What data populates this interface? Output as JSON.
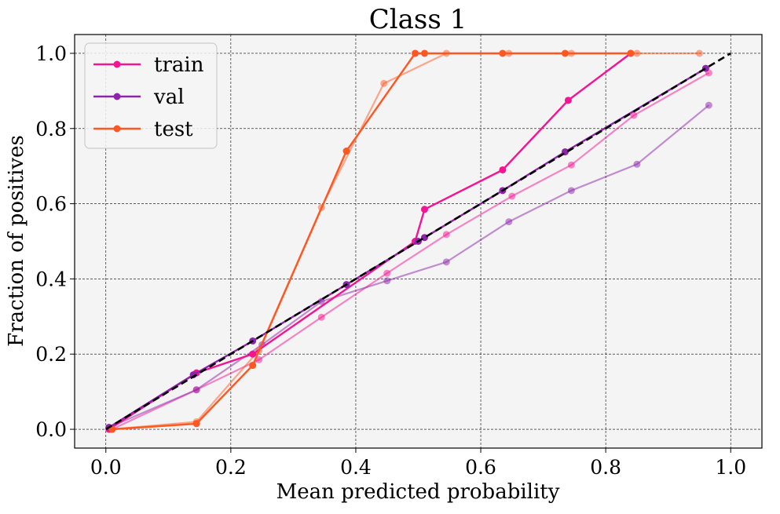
{
  "chart_data": {
    "type": "line",
    "title": "Class 1",
    "xlabel": "Mean predicted probability",
    "ylabel": "Fraction of positives",
    "xlim": [
      -0.05,
      1.05
    ],
    "ylim": [
      -0.05,
      1.05
    ],
    "xticks": [
      0.0,
      0.2,
      0.4,
      0.6,
      0.8,
      1.0
    ],
    "yticks": [
      0.0,
      0.2,
      0.4,
      0.6,
      0.8,
      1.0
    ],
    "xtick_labels": [
      "0.0",
      "0.2",
      "0.4",
      "0.6",
      "0.8",
      "1.0"
    ],
    "ytick_labels": [
      "0.0",
      "0.2",
      "0.4",
      "0.6",
      "0.8",
      "1.0"
    ],
    "grid": true,
    "background": "#f4f4f4",
    "legend_position": "top-left",
    "legend": [
      "train",
      "val",
      "test"
    ],
    "reference_line": {
      "style": "dashed",
      "color": "#000000",
      "x": [
        0,
        1
      ],
      "y": [
        0,
        1
      ]
    },
    "series": [
      {
        "name": "train",
        "color": "#f51493",
        "x": [
          0.005,
          0.145,
          0.235,
          0.495,
          0.51,
          0.635,
          0.74,
          0.84
        ],
        "y": [
          0.0,
          0.15,
          0.2,
          0.5,
          0.585,
          0.69,
          0.875,
          1.0
        ],
        "faded_x": [
          0.01,
          0.145,
          0.245,
          0.345,
          0.45,
          0.545,
          0.65,
          0.745,
          0.845,
          0.965
        ],
        "faded_y": [
          0.0,
          0.105,
          0.185,
          0.298,
          0.415,
          0.518,
          0.62,
          0.703,
          0.835,
          0.948
        ]
      },
      {
        "name": "val",
        "color": "#8e24aa",
        "x": [
          0.005,
          0.14,
          0.235,
          0.385,
          0.5,
          0.51,
          0.635,
          0.735,
          0.96
        ],
        "y": [
          0.005,
          0.145,
          0.235,
          0.385,
          0.5,
          0.51,
          0.635,
          0.738,
          0.96
        ],
        "faded_x": [
          0.005,
          0.145,
          0.25,
          0.345,
          0.45,
          0.545,
          0.645,
          0.745,
          0.85,
          0.965
        ],
        "faded_y": [
          0.005,
          0.105,
          0.225,
          0.34,
          0.395,
          0.445,
          0.552,
          0.635,
          0.705,
          0.862
        ]
      },
      {
        "name": "test",
        "color": "#ff5722",
        "x": [
          0.01,
          0.145,
          0.235,
          0.385,
          0.495,
          0.51,
          0.635,
          0.735,
          0.84
        ],
        "y": [
          0.0,
          0.015,
          0.17,
          0.74,
          1.0,
          1.0,
          1.0,
          1.0,
          1.0
        ],
        "faded_x": [
          0.01,
          0.145,
          0.245,
          0.345,
          0.445,
          0.545,
          0.645,
          0.745,
          0.85,
          0.95
        ],
        "faded_y": [
          0.0,
          0.02,
          0.21,
          0.59,
          0.92,
          1.0,
          1.0,
          1.0,
          1.0,
          1.0
        ]
      }
    ]
  }
}
